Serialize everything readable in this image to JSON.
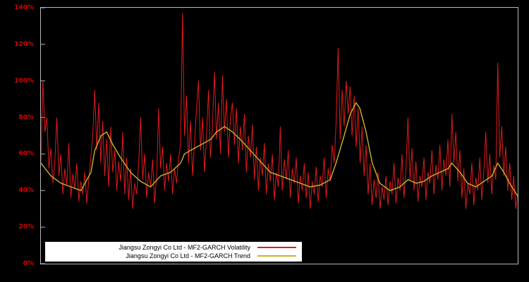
{
  "page": {
    "background": "#000000"
  },
  "chart_data": {
    "type": "line",
    "title": "",
    "xlabel": "",
    "ylabel": "",
    "ylim": [
      0,
      140
    ],
    "grid": false,
    "legend_position": "bottom-left-inside",
    "axis_color": "#b8b8b8",
    "tick_label_color": "#dd0000",
    "yticks": [
      "0%",
      "20%",
      "40%",
      "60%",
      "80%",
      "100%",
      "120%",
      "140%"
    ],
    "series": [
      {
        "name": "Jiangsu Zongyi Co Ltd - MF2-GARCH Volatility",
        "color": "#dd1c1c",
        "values": [
          55,
          100,
          72,
          80,
          52,
          63,
          44,
          56,
          80,
          48,
          60,
          38,
          52,
          43,
          66,
          36,
          49,
          41,
          55,
          34,
          45,
          38,
          50,
          33,
          46,
          58,
          70,
          95,
          62,
          88,
          55,
          78,
          48,
          68,
          42,
          75,
          50,
          62,
          40,
          56,
          45,
          72,
          38,
          58,
          35,
          52,
          30,
          44,
          38,
          55,
          80,
          46,
          60,
          36,
          50,
          42,
          57,
          33,
          48,
          85,
          52,
          64,
          40,
          55,
          45,
          60,
          38,
          52,
          44,
          58,
          65,
          137,
          70,
          92,
          55,
          78,
          48,
          66,
          85,
          100,
          62,
          80,
          50,
          70,
          95,
          58,
          75,
          105,
          68,
          88,
          60,
          103,
          72,
          90,
          58,
          80,
          88,
          65,
          85,
          55,
          75,
          62,
          82,
          50,
          70,
          58,
          76,
          46,
          64,
          40,
          58,
          48,
          66,
          38,
          55,
          45,
          60,
          35,
          50,
          42,
          75,
          40,
          57,
          46,
          62,
          36,
          52,
          44,
          58,
          33,
          48,
          40,
          55,
          36,
          50,
          30,
          45,
          38,
          53,
          34,
          48,
          42,
          58,
          36,
          52,
          45,
          65,
          55,
          78,
          118,
          68,
          95,
          75,
          100,
          82,
          97,
          70,
          92,
          64,
          85,
          55,
          75,
          48,
          65,
          38,
          55,
          32,
          46,
          36,
          50,
          30,
          42,
          35,
          48,
          32,
          45,
          38,
          55,
          33,
          47,
          40,
          60,
          36,
          52,
          80,
          46,
          63,
          40,
          56,
          34,
          48,
          42,
          58,
          35,
          50,
          44,
          62,
          38,
          54,
          46,
          65,
          40,
          57,
          48,
          68,
          42,
          82,
          55,
          72,
          45,
          62,
          36,
          52,
          30,
          44,
          38,
          55,
          32,
          47,
          40,
          58,
          35,
          50,
          72,
          44,
          60,
          38,
          54,
          46,
          110,
          58,
          75,
          48,
          64,
          40,
          55,
          35,
          48,
          30,
          38
        ]
      },
      {
        "name": "Jiangsu Zongyi Co Ltd - MF2-GARCH Trend",
        "color": "#ccb22a",
        "points": [
          [
            0,
            55
          ],
          [
            0.021,
            48
          ],
          [
            0.042,
            44
          ],
          [
            0.063,
            42
          ],
          [
            0.084,
            40
          ],
          [
            0.105,
            50
          ],
          [
            0.113,
            62
          ],
          [
            0.126,
            70
          ],
          [
            0.138,
            72
          ],
          [
            0.151,
            65
          ],
          [
            0.167,
            58
          ],
          [
            0.188,
            50
          ],
          [
            0.209,
            45
          ],
          [
            0.23,
            42
          ],
          [
            0.251,
            48
          ],
          [
            0.272,
            50
          ],
          [
            0.293,
            55
          ],
          [
            0.301,
            60
          ],
          [
            0.314,
            62
          ],
          [
            0.335,
            65
          ],
          [
            0.356,
            68
          ],
          [
            0.368,
            72
          ],
          [
            0.385,
            75
          ],
          [
            0.402,
            72
          ],
          [
            0.418,
            68
          ],
          [
            0.439,
            62
          ],
          [
            0.46,
            56
          ],
          [
            0.481,
            50
          ],
          [
            0.502,
            48
          ],
          [
            0.523,
            46
          ],
          [
            0.544,
            44
          ],
          [
            0.565,
            42
          ],
          [
            0.586,
            43
          ],
          [
            0.607,
            46
          ],
          [
            0.619,
            55
          ],
          [
            0.636,
            70
          ],
          [
            0.649,
            82
          ],
          [
            0.661,
            88
          ],
          [
            0.669,
            85
          ],
          [
            0.682,
            72
          ],
          [
            0.695,
            55
          ],
          [
            0.711,
            44
          ],
          [
            0.732,
            40
          ],
          [
            0.753,
            42
          ],
          [
            0.77,
            46
          ],
          [
            0.787,
            44
          ],
          [
            0.803,
            45
          ],
          [
            0.82,
            48
          ],
          [
            0.837,
            50
          ],
          [
            0.854,
            52
          ],
          [
            0.862,
            55
          ],
          [
            0.879,
            50
          ],
          [
            0.895,
            44
          ],
          [
            0.912,
            42
          ],
          [
            0.929,
            45
          ],
          [
            0.946,
            48
          ],
          [
            0.958,
            55
          ],
          [
            0.971,
            50
          ],
          [
            0.983,
            44
          ],
          [
            1,
            37
          ]
        ]
      }
    ]
  }
}
